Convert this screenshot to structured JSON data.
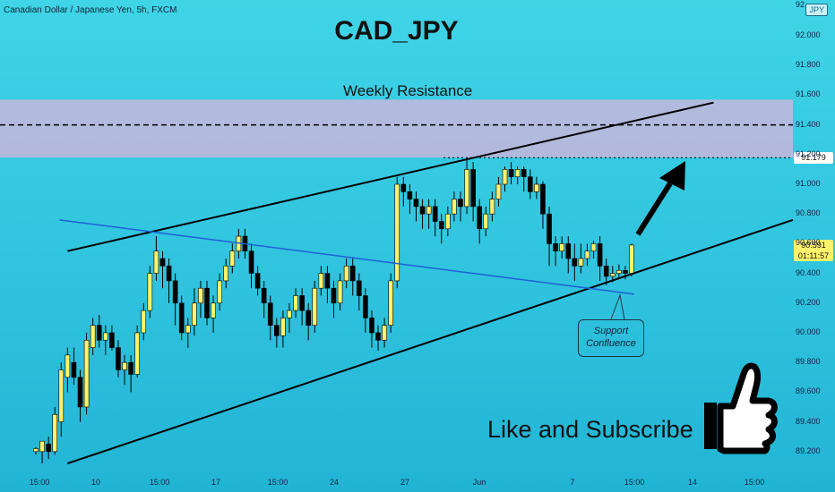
{
  "symbol_line": "Canadian Dollar / Japanese Yen, 5h, FXCM",
  "currency_badge": "JPY",
  "headline": "CAD_JPY",
  "resistance_label": "Weekly Resistance",
  "support_callout": [
    "Support",
    "Confluence"
  ],
  "cta_text": "Like and Subscribe",
  "colors": {
    "background": "#2fc2de",
    "bull_candle": "#fff36b",
    "bear_candle": "#000000",
    "resistance_zone": "#c8b6dc",
    "trendline": "#000000",
    "descending_line": "#1f5fd6"
  },
  "chart_data": {
    "type": "candlestick",
    "title": "CAD_JPY",
    "ylabel": "",
    "ylim": [
      89.05,
      92.1
    ],
    "y_ticks": [
      "92.000",
      "91.800",
      "91.600",
      "91.400",
      "91.200",
      "91.000",
      "90.800",
      "90.600",
      "90.400",
      "90.200",
      "90.000",
      "89.800",
      "89.600",
      "89.400",
      "89.200"
    ],
    "x_ticks": [
      "15:00",
      "10",
      "15:00",
      "17",
      "15:00",
      "24",
      "27",
      "Jun",
      "7",
      "15:00",
      "14",
      "15:00"
    ],
    "top_partial_tick": "92",
    "resistance_zone": [
      91.18,
      91.57
    ],
    "resistance_dashed_level": 91.4,
    "marked_level": "91.179",
    "last_price": "90.591",
    "countdown": "01:11:57",
    "candles": [
      [
        89.2,
        89.22,
        89.18,
        89.23
      ],
      [
        89.2,
        89.27,
        89.12,
        89.26
      ],
      [
        89.25,
        89.2,
        89.15,
        89.3
      ],
      [
        89.2,
        89.45,
        89.18,
        89.5
      ],
      [
        89.4,
        89.75,
        89.3,
        89.8
      ],
      [
        89.7,
        89.85,
        89.6,
        89.9
      ],
      [
        89.8,
        89.7,
        89.65,
        89.9
      ],
      [
        89.7,
        89.5,
        89.4,
        89.75
      ],
      [
        89.5,
        89.95,
        89.45,
        90.0
      ],
      [
        89.9,
        90.05,
        89.85,
        90.1
      ],
      [
        90.05,
        89.95,
        89.9,
        90.12
      ],
      [
        89.95,
        90.0,
        89.85,
        90.05
      ],
      [
        90.0,
        89.9,
        89.88,
        90.05
      ],
      [
        89.9,
        89.75,
        89.7,
        89.95
      ],
      [
        89.75,
        89.8,
        89.65,
        89.85
      ],
      [
        89.8,
        89.72,
        89.6,
        89.85
      ],
      [
        89.72,
        90.0,
        89.7,
        90.05
      ],
      [
        90.0,
        90.15,
        89.95,
        90.2
      ],
      [
        90.15,
        90.4,
        90.1,
        90.45
      ],
      [
        90.4,
        90.55,
        90.35,
        90.65
      ],
      [
        90.5,
        90.45,
        90.3,
        90.55
      ],
      [
        90.45,
        90.35,
        90.2,
        90.5
      ],
      [
        90.35,
        90.2,
        90.05,
        90.4
      ],
      [
        90.2,
        90.0,
        89.95,
        90.25
      ],
      [
        90.0,
        90.05,
        89.9,
        90.1
      ],
      [
        90.05,
        90.2,
        89.98,
        90.3
      ],
      [
        90.2,
        90.3,
        90.1,
        90.35
      ],
      [
        90.3,
        90.1,
        90.05,
        90.35
      ],
      [
        90.1,
        90.2,
        90.0,
        90.25
      ],
      [
        90.2,
        90.35,
        90.15,
        90.4
      ],
      [
        90.35,
        90.45,
        90.3,
        90.5
      ],
      [
        90.45,
        90.55,
        90.4,
        90.6
      ],
      [
        90.55,
        90.65,
        90.5,
        90.7
      ],
      [
        90.65,
        90.55,
        90.5,
        90.7
      ],
      [
        90.55,
        90.4,
        90.3,
        90.6
      ],
      [
        90.4,
        90.3,
        90.25,
        90.45
      ],
      [
        90.3,
        90.2,
        90.1,
        90.35
      ],
      [
        90.2,
        90.05,
        89.95,
        90.25
      ],
      [
        90.05,
        89.98,
        89.9,
        90.1
      ],
      [
        89.98,
        90.1,
        89.9,
        90.15
      ],
      [
        90.1,
        90.15,
        90.0,
        90.2
      ],
      [
        90.15,
        90.25,
        90.1,
        90.3
      ],
      [
        90.25,
        90.15,
        90.05,
        90.3
      ],
      [
        90.15,
        90.05,
        89.95,
        90.2
      ],
      [
        90.05,
        90.3,
        90.0,
        90.35
      ],
      [
        90.3,
        90.4,
        90.25,
        90.45
      ],
      [
        90.4,
        90.3,
        90.2,
        90.45
      ],
      [
        90.3,
        90.2,
        90.1,
        90.35
      ],
      [
        90.2,
        90.35,
        90.15,
        90.4
      ],
      [
        90.35,
        90.45,
        90.3,
        90.5
      ],
      [
        90.45,
        90.35,
        90.25,
        90.5
      ],
      [
        90.35,
        90.25,
        90.15,
        90.4
      ],
      [
        90.25,
        90.1,
        90.0,
        90.3
      ],
      [
        90.1,
        90.0,
        89.9,
        90.15
      ],
      [
        90.0,
        89.95,
        89.88,
        90.05
      ],
      [
        89.95,
        90.05,
        89.9,
        90.1
      ],
      [
        90.05,
        90.35,
        90.0,
        90.4
      ],
      [
        90.35,
        91.0,
        90.3,
        91.05
      ],
      [
        91.0,
        90.95,
        90.85,
        91.05
      ],
      [
        90.95,
        90.9,
        90.8,
        91.0
      ],
      [
        90.9,
        90.85,
        90.75,
        90.95
      ],
      [
        90.85,
        90.8,
        90.7,
        90.9
      ],
      [
        90.8,
        90.85,
        90.7,
        90.9
      ],
      [
        90.85,
        90.75,
        90.65,
        90.9
      ],
      [
        90.75,
        90.7,
        90.6,
        90.8
      ],
      [
        90.7,
        90.8,
        90.65,
        90.85
      ],
      [
        90.8,
        90.9,
        90.75,
        90.95
      ],
      [
        90.9,
        90.85,
        90.75,
        90.95
      ],
      [
        90.85,
        91.1,
        90.8,
        91.18
      ],
      [
        91.1,
        90.85,
        90.75,
        91.15
      ],
      [
        90.85,
        90.7,
        90.6,
        90.9
      ],
      [
        90.7,
        90.8,
        90.65,
        90.85
      ],
      [
        90.8,
        90.9,
        90.75,
        90.95
      ],
      [
        90.9,
        91.0,
        90.85,
        91.05
      ],
      [
        91.0,
        91.1,
        90.95,
        91.12
      ],
      [
        91.1,
        91.05,
        91.0,
        91.15
      ],
      [
        91.05,
        91.1,
        91.0,
        91.12
      ],
      [
        91.1,
        91.05,
        90.95,
        91.12
      ],
      [
        91.05,
        90.95,
        90.9,
        91.1
      ],
      [
        90.95,
        91.0,
        90.9,
        91.05
      ],
      [
        91.0,
        90.8,
        90.7,
        91.02
      ],
      [
        90.8,
        90.6,
        90.45,
        90.85
      ],
      [
        90.6,
        90.55,
        90.45,
        90.65
      ],
      [
        90.55,
        90.6,
        90.5,
        90.65
      ],
      [
        90.6,
        90.5,
        90.4,
        90.65
      ],
      [
        90.5,
        90.45,
        90.35,
        90.6
      ],
      [
        90.45,
        90.5,
        90.4,
        90.6
      ],
      [
        90.5,
        90.55,
        90.45,
        90.6
      ],
      [
        90.55,
        90.6,
        90.5,
        90.62
      ],
      [
        90.6,
        90.45,
        90.35,
        90.65
      ],
      [
        90.45,
        90.38,
        90.32,
        90.5
      ],
      [
        90.38,
        90.4,
        90.34,
        90.45
      ],
      [
        90.4,
        90.42,
        90.36,
        90.46
      ],
      [
        90.42,
        90.4,
        90.36,
        90.45
      ],
      [
        90.4,
        90.591,
        90.38,
        90.6
      ]
    ]
  },
  "drawings": {
    "upper_channel": [
      [
        0.04,
        90.55
      ],
      [
        0.9,
        91.55
      ]
    ],
    "lower_channel": [
      [
        0.04,
        89.12
      ],
      [
        1.0,
        90.76
      ]
    ],
    "descending_line": [
      [
        0.03,
        90.76
      ],
      [
        0.8,
        90.26
      ]
    ]
  }
}
